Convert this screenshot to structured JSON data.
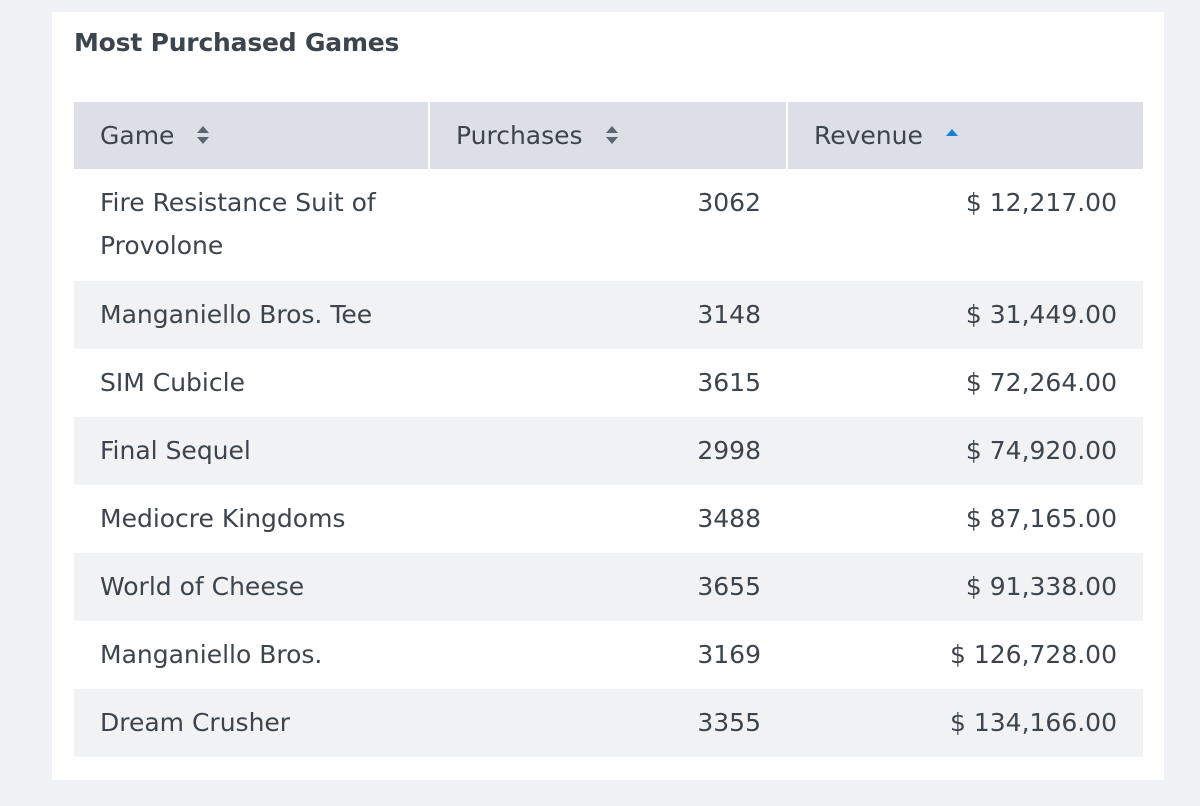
{
  "panel": {
    "title": "Most Purchased Games"
  },
  "table": {
    "columns": [
      {
        "label": "Game",
        "sort": "unsorted",
        "sort_icon": "sort-both-icon"
      },
      {
        "label": "Purchases",
        "sort": "unsorted",
        "sort_icon": "sort-both-icon"
      },
      {
        "label": "Revenue",
        "sort": "ascending",
        "sort_icon": "sort-ascending-icon"
      }
    ],
    "rows": [
      {
        "game": "Fire Resistance Suit of Provolone",
        "purchases": "3062",
        "revenue": "$ 12,217.00"
      },
      {
        "game": "Manganiello Bros. Tee",
        "purchases": "3148",
        "revenue": "$ 31,449.00"
      },
      {
        "game": "SIM Cubicle",
        "purchases": "3615",
        "revenue": "$ 72,264.00"
      },
      {
        "game": "Final Sequel",
        "purchases": "2998",
        "revenue": "$ 74,920.00"
      },
      {
        "game": "Mediocre Kingdoms",
        "purchases": "3488",
        "revenue": "$ 87,165.00"
      },
      {
        "game": "World of Cheese",
        "purchases": "3655",
        "revenue": "$ 91,338.00"
      },
      {
        "game": "Manganiello Bros.",
        "purchases": "3169",
        "revenue": "$ 126,728.00"
      },
      {
        "game": "Dream Crusher",
        "purchases": "3355",
        "revenue": "$ 134,166.00"
      }
    ]
  },
  "colors": {
    "header_bg": "#dce0e6",
    "stripe_bg": "#f1f2f4",
    "sort_active": "#1a82d4",
    "sort_inactive": "#5c6570",
    "text": "#3c444d"
  }
}
